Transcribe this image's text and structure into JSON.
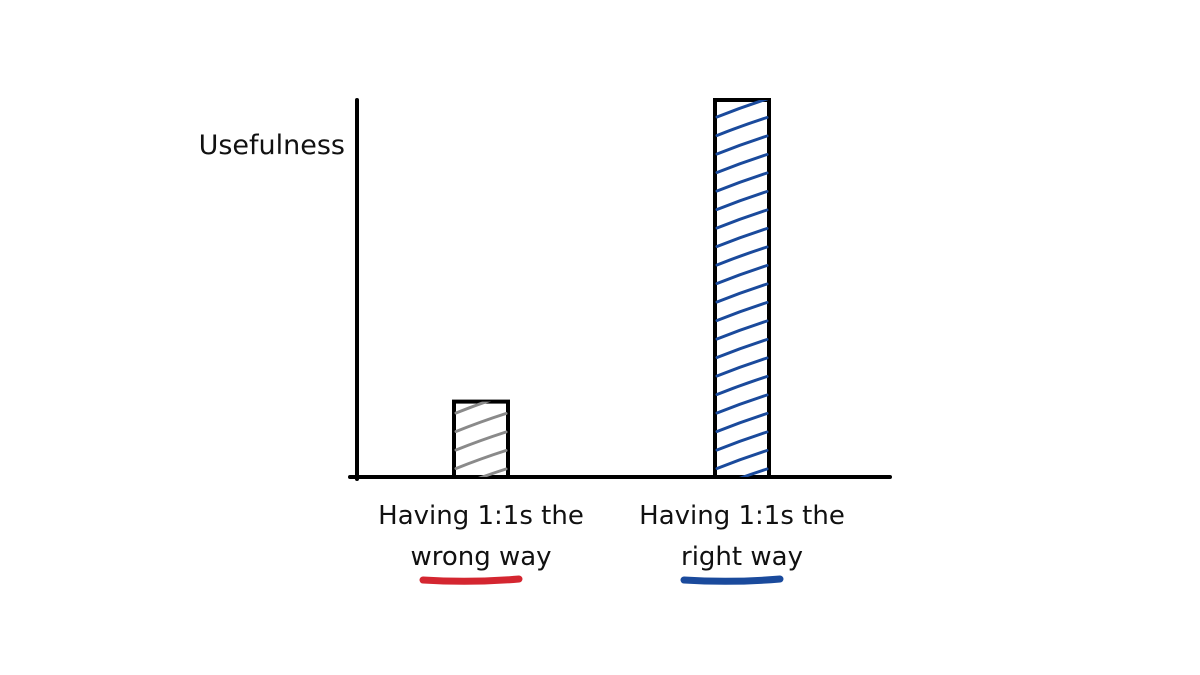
{
  "chart_data": {
    "type": "bar",
    "ylabel": "Usefulness",
    "categories": [
      "Having 1:1s the wrong way",
      "Having 1:1s the right way"
    ],
    "values": [
      20,
      100
    ],
    "colors": [
      "#8a8a8a",
      "#1a4a9c"
    ],
    "underline_colors": [
      "#d42630",
      "#1a4a9c"
    ],
    "ylim": [
      0,
      100
    ]
  }
}
